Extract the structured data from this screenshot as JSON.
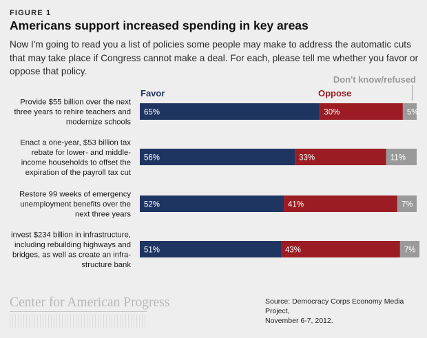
{
  "figure_label": "FIGURE 1",
  "title": "Americans support increased spending in key areas",
  "subtitle": "Now I'm going to read you a list of policies some people may make to address the automatic cuts that may take place if Congress cannot make a deal. For each, please tell me whether you favor or oppose that policy.",
  "colors": {
    "favor": "#1f3561",
    "oppose": "#9b1c22",
    "dont_know": "#9a9a9a"
  },
  "chart_data": {
    "type": "bar",
    "orientation": "horizontal",
    "stacked": true,
    "title": "Americans support increased spending in key areas",
    "xlim": [
      0,
      100
    ],
    "legend_position": "top",
    "categories": [
      [
        "Provide $55 billion over the next",
        "three years to rehire teachers and",
        "modernize schools"
      ],
      [
        "Enact a one-year, $53 billion tax",
        "rebate for lower- and middle-",
        "income households to offset the",
        "expiration of the payroll tax cut"
      ],
      [
        "Restore 99 weeks of emergency",
        "unemployment benefits over the",
        "next three years"
      ],
      [
        "invest $234 billion in infrastructure,",
        "including rebuilding highways and",
        "bridges, as well as create an infra-",
        "structure bank"
      ]
    ],
    "series": [
      {
        "name": "Favor",
        "values": [
          65,
          56,
          52,
          51
        ]
      },
      {
        "name": "Oppose",
        "values": [
          30,
          33,
          41,
          43
        ]
      },
      {
        "name": "Don't know/refused",
        "values": [
          5,
          11,
          7,
          7
        ]
      }
    ],
    "value_suffix": "%"
  },
  "footer": {
    "logo_text": "Center for American Progress",
    "source_lines": [
      "Source: Democracy Corps Economy Media Project,",
      "November 6-7, 2012."
    ]
  }
}
